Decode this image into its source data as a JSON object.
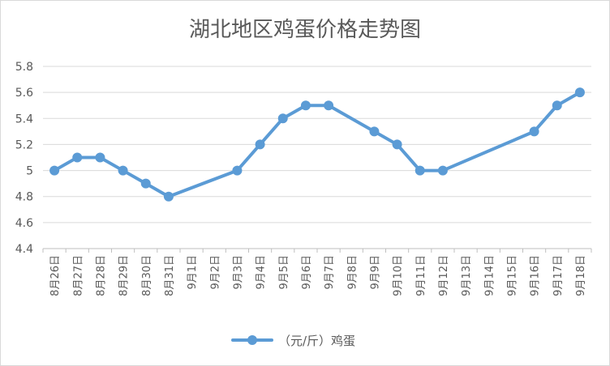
{
  "chart_data": {
    "type": "line",
    "title": "湖北地区鸡蛋价格走势图",
    "xlabel": "",
    "ylabel": "",
    "ylim": [
      4.4,
      5.8
    ],
    "yticks": [
      "4.4",
      "4.6",
      "4.8",
      "5",
      "5.2",
      "5.4",
      "5.6",
      "5.8"
    ],
    "categories": [
      "8月26日",
      "8月27日",
      "8月28日",
      "8月29日",
      "8月30日",
      "8月31日",
      "9月1日",
      "9月2日",
      "9月3日",
      "9月4日",
      "9月5日",
      "9月6日",
      "9月7日",
      "9月8日",
      "9月9日",
      "9月10日",
      "9月11日",
      "9月12日",
      "9月13日",
      "9月14日",
      "9月15日",
      "9月16日",
      "9月17日",
      "9月18日"
    ],
    "series": [
      {
        "name": "（元/斤）鸡蛋",
        "color": "#5b9bd5",
        "values": [
          5.0,
          5.1,
          5.1,
          5.0,
          4.9,
          4.8,
          null,
          null,
          5.0,
          5.2,
          5.4,
          5.5,
          5.5,
          null,
          5.3,
          5.2,
          5.0,
          5.0,
          null,
          null,
          null,
          5.3,
          5.5,
          5.6
        ]
      }
    ],
    "grid": true,
    "legend": "bottom",
    "gaps": "connect"
  }
}
